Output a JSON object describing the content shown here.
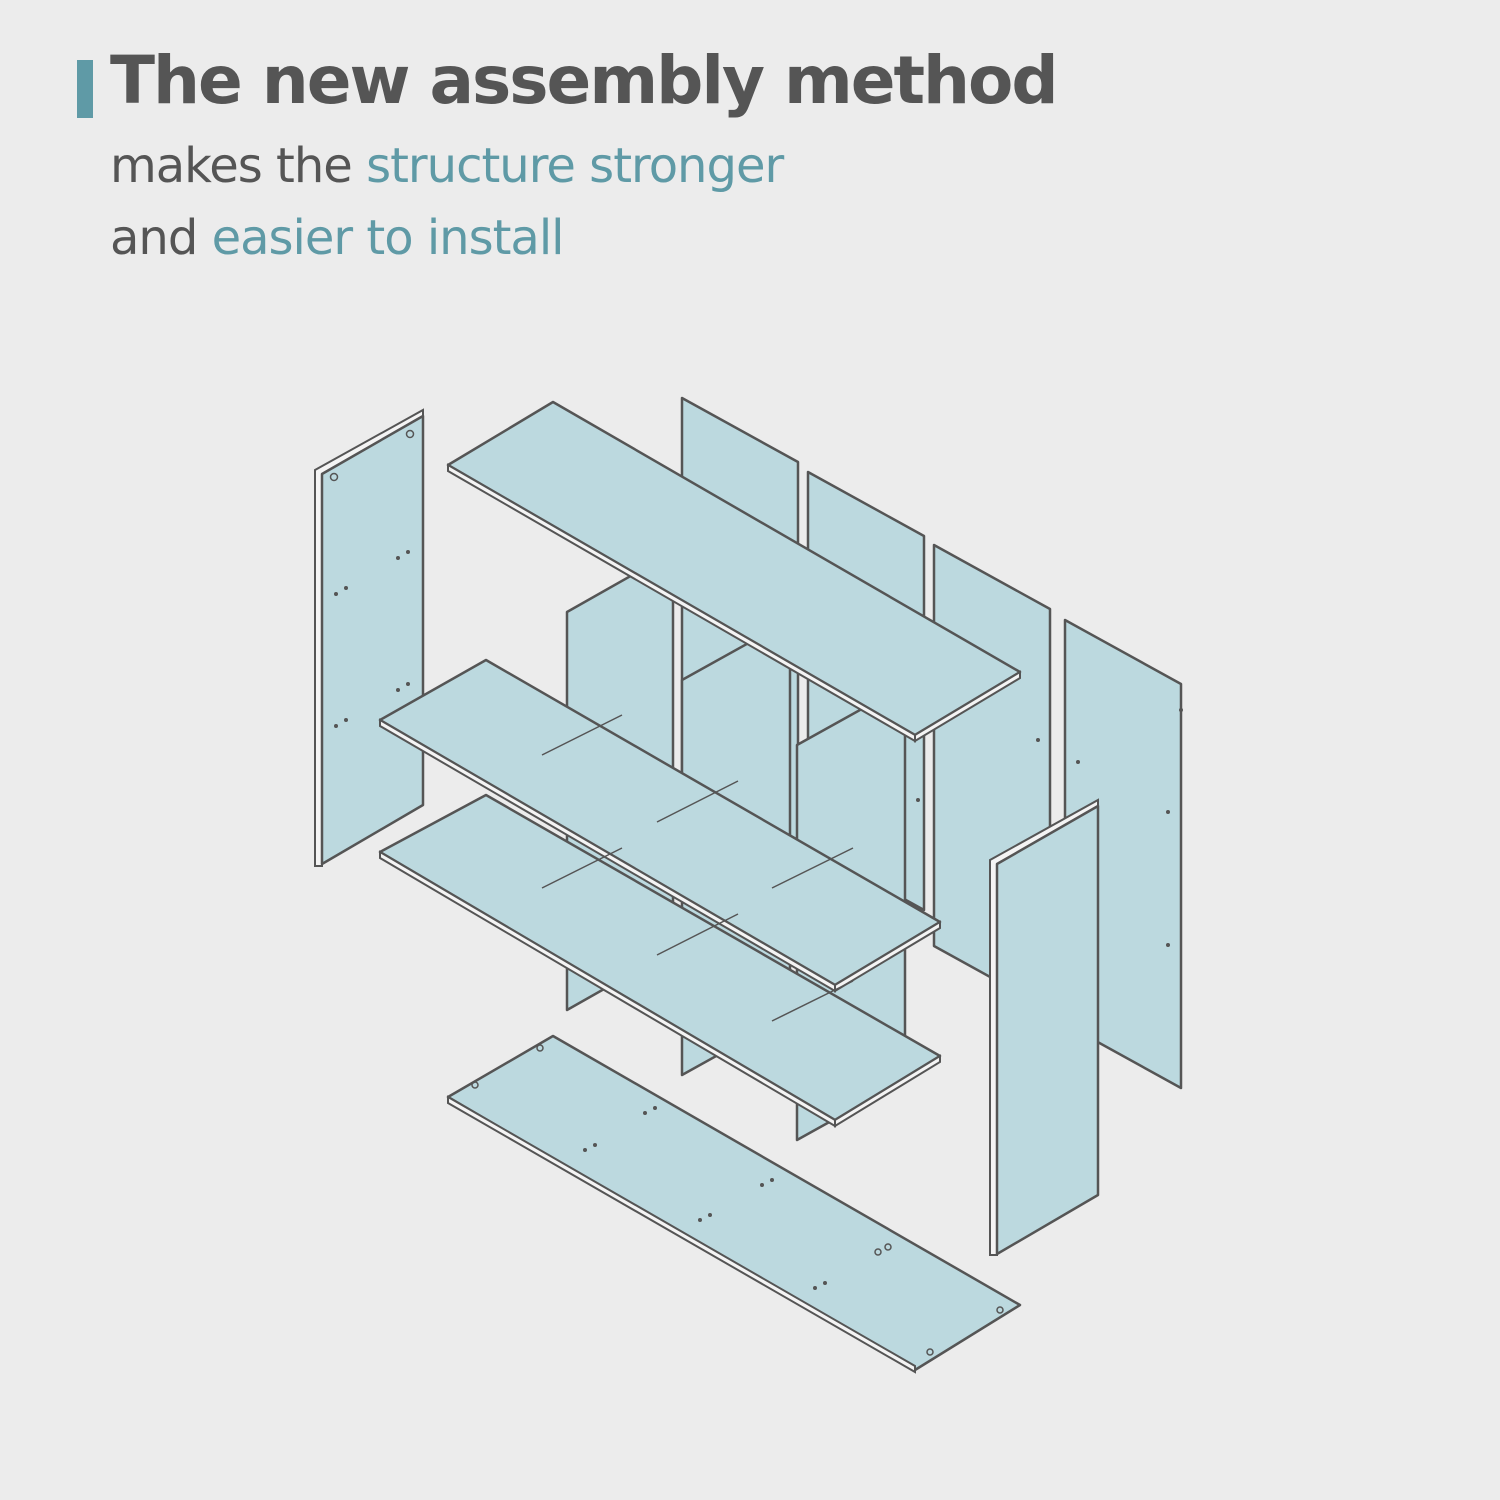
{
  "heading": {
    "title": "The new assembly method",
    "line1": {
      "text": "makes the ",
      "highlight": "structure stronger"
    },
    "line2": {
      "text": "and ",
      "highlight": "easier to install"
    }
  },
  "colors": {
    "background": "#ececec",
    "text": "#555555",
    "accent": "#5f9aa6",
    "panel_fill": "#bcd9df",
    "outline": "#555555"
  },
  "diagram": {
    "type": "exploded isometric assembly view of a bookshelf",
    "parts": [
      "left side panel",
      "top board",
      "back panel 1",
      "back panel 2",
      "back panel 3",
      "back panel 4",
      "divider 1",
      "divider 2",
      "divider 3",
      "middle shelf 1",
      "middle shelf 2",
      "right side panel",
      "bottom board"
    ]
  }
}
